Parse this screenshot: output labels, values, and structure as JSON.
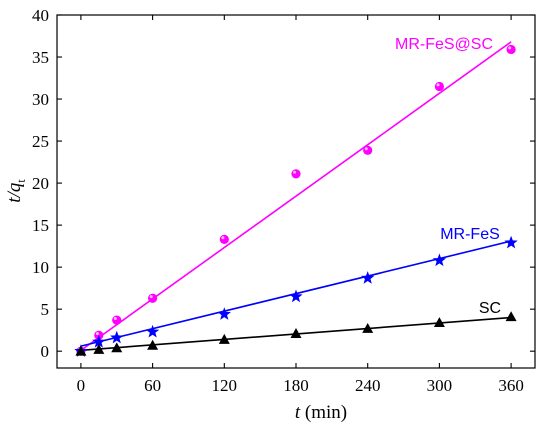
{
  "chart_data": {
    "type": "scatter",
    "xlabel": {
      "var": "t",
      "unit": " (min)"
    },
    "ylabel": {
      "var": "t/q",
      "sub": "t"
    },
    "xlim": [
      -20,
      380
    ],
    "ylim": [
      -2,
      40
    ],
    "xticks": [
      0,
      60,
      120,
      180,
      240,
      300,
      360
    ],
    "yticks": [
      0,
      5,
      10,
      15,
      20,
      25,
      30,
      35,
      40
    ],
    "grid": false,
    "series": [
      {
        "name": "MR-FeS@SC",
        "color": "#ff00ff",
        "marker": "circle",
        "x": [
          0,
          15,
          30,
          60,
          120,
          180,
          240,
          300,
          360
        ],
        "y": [
          0,
          1.9,
          3.7,
          6.3,
          13.3,
          21.1,
          23.9,
          31.5,
          35.9
        ],
        "fit": [
          [
            0,
            0.1
          ],
          [
            360,
            36.8
          ]
        ]
      },
      {
        "name": "MR-FeS",
        "color": "#0000ff",
        "marker": "star",
        "x": [
          0,
          15,
          30,
          60,
          120,
          180,
          240,
          300,
          360
        ],
        "y": [
          0,
          1.1,
          1.6,
          2.3,
          4.4,
          6.5,
          8.7,
          10.8,
          12.9
        ],
        "fit": [
          [
            0,
            0.6
          ],
          [
            360,
            13.1
          ]
        ]
      },
      {
        "name": "SC",
        "color": "#000000",
        "marker": "triangle",
        "x": [
          0,
          15,
          30,
          60,
          120,
          180,
          240,
          300,
          360
        ],
        "y": [
          0,
          0.2,
          0.4,
          0.7,
          1.4,
          2.1,
          2.7,
          3.4,
          4.1
        ],
        "fit": [
          [
            0,
            0.1
          ],
          [
            360,
            4.0
          ]
        ]
      }
    ]
  }
}
